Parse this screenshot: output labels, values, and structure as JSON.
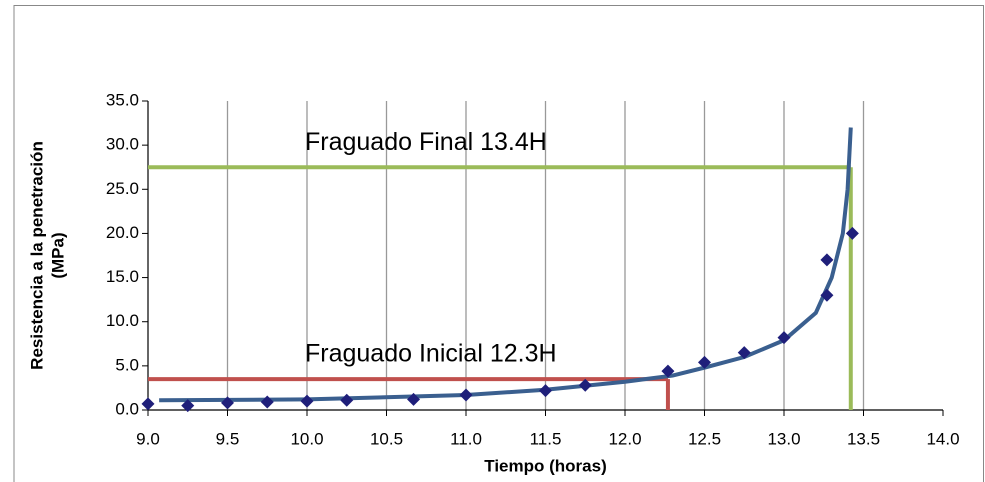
{
  "chart_data": {
    "type": "scatter",
    "x_label": "Tiempo (horas)",
    "y_label": [
      "Resistencia a la penetración",
      "(MPa)"
    ],
    "x": [
      9.0,
      9.25,
      9.5,
      9.75,
      10.0,
      10.25,
      10.67,
      11.0,
      11.5,
      11.75,
      12.27,
      12.5,
      12.75,
      13.0,
      13.27,
      13.27,
      13.43
    ],
    "values": [
      0.7,
      0.5,
      0.8,
      0.9,
      1.0,
      1.1,
      1.2,
      1.7,
      2.2,
      2.8,
      4.4,
      5.4,
      6.5,
      8.2,
      17.0,
      13.0,
      20.0
    ],
    "color": "#1f1f7a",
    "curve": {
      "color": "#3a5f8f",
      "x": [
        9.07,
        10.0,
        11.0,
        11.5,
        12.0,
        12.3,
        12.5,
        12.75,
        13.0,
        13.2,
        13.3,
        13.37,
        13.4,
        13.42
      ],
      "values": [
        1.1,
        1.2,
        1.7,
        2.3,
        3.2,
        3.9,
        4.8,
        6.0,
        7.9,
        11.0,
        15.0,
        20.0,
        25.0,
        32.0
      ]
    },
    "reference_lines": [
      {
        "x": 13.42,
        "y": 27.5,
        "color": "#9bbb59",
        "label": "Fraguado Final 13.4H"
      },
      {
        "x": 12.27,
        "y": 3.5,
        "color": "#c0504d",
        "label": "Fraguado Inicial 12.3H"
      }
    ],
    "xlim": [
      9.0,
      14.0
    ],
    "ylim": [
      0,
      35
    ],
    "xticks": [
      {
        "value": 9.0,
        "label": "9.0"
      },
      {
        "value": 9.5,
        "label": "9.5"
      },
      {
        "value": 10.0,
        "label": "10.0"
      },
      {
        "value": 10.5,
        "label": "10.5"
      },
      {
        "value": 11.0,
        "label": "11.0"
      },
      {
        "value": 11.5,
        "label": "11.5"
      },
      {
        "value": 12.0,
        "label": "12.0"
      },
      {
        "value": 12.5,
        "label": "12.5"
      },
      {
        "value": 13.0,
        "label": "13.0"
      },
      {
        "value": 13.5,
        "label": "13.5"
      },
      {
        "value": 14.0,
        "label": "14.0"
      }
    ],
    "yticks": [
      {
        "value": 0,
        "label": "0.0"
      },
      {
        "value": 5,
        "label": "5.0"
      },
      {
        "value": 10,
        "label": "10.0"
      },
      {
        "value": 15,
        "label": "15.0"
      },
      {
        "value": 20,
        "label": "20.0"
      },
      {
        "value": 25,
        "label": "25.0"
      },
      {
        "value": 30,
        "label": "30.0"
      },
      {
        "value": 35,
        "label": "35.0"
      }
    ],
    "grid": "x"
  }
}
